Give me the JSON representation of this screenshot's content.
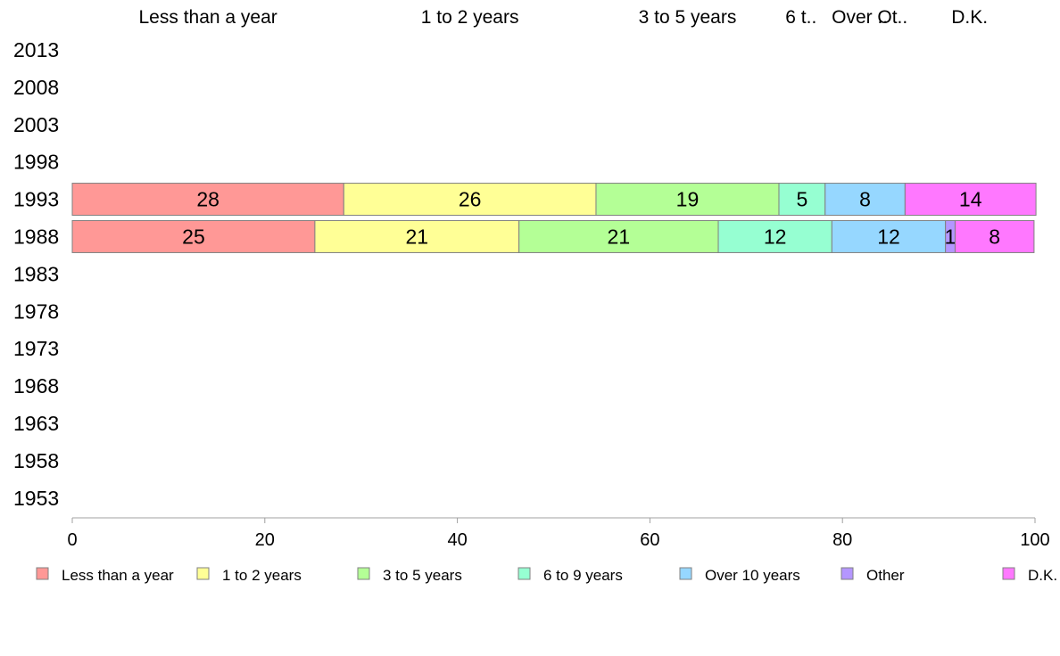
{
  "chart_data": {
    "type": "bar",
    "orientation": "horizontal",
    "stacked": true,
    "categories": [
      "2013",
      "2008",
      "2003",
      "1998",
      "1993",
      "1988",
      "1983",
      "1978",
      "1973",
      "1968",
      "1963",
      "1958",
      "1953"
    ],
    "series": [
      {
        "name": "Less than a year",
        "color": "#ff9896",
        "values": [
          null,
          null,
          null,
          null,
          28.2,
          25.2,
          null,
          null,
          null,
          null,
          null,
          null,
          null
        ],
        "labels": [
          "",
          "",
          "",
          "",
          "28",
          "25",
          "",
          "",
          "",
          "",
          "",
          "",
          ""
        ]
      },
      {
        "name": "1 to 2 years",
        "color": "#ffff96",
        "values": [
          null,
          null,
          null,
          null,
          26.2,
          21.2,
          null,
          null,
          null,
          null,
          null,
          null,
          null
        ],
        "labels": [
          "",
          "",
          "",
          "",
          "26",
          "21",
          "",
          "",
          "",
          "",
          "",
          "",
          ""
        ]
      },
      {
        "name": "3 to 5 years",
        "color": "#b4ff96",
        "values": [
          null,
          null,
          null,
          null,
          19.0,
          20.7,
          null,
          null,
          null,
          null,
          null,
          null,
          null
        ],
        "labels": [
          "",
          "",
          "",
          "",
          "19",
          "21",
          "",
          "",
          "",
          "",
          "",
          "",
          ""
        ]
      },
      {
        "name": "6 to 9 years",
        "color": "#96ffd2",
        "values": [
          null,
          null,
          null,
          null,
          4.8,
          11.8,
          null,
          null,
          null,
          null,
          null,
          null,
          null
        ],
        "labels": [
          "",
          "",
          "",
          "",
          "5",
          "12",
          "",
          "",
          "",
          "",
          "",
          "",
          ""
        ]
      },
      {
        "name": "Over 10 years",
        "color": "#96d7ff",
        "values": [
          null,
          null,
          null,
          null,
          8.3,
          11.8,
          null,
          null,
          null,
          null,
          null,
          null,
          null
        ],
        "labels": [
          "",
          "",
          "",
          "",
          "8",
          "12",
          "",
          "",
          "",
          "",
          "",
          "",
          ""
        ]
      },
      {
        "name": "Other",
        "color": "#b496ff",
        "values": [
          null,
          null,
          null,
          null,
          0,
          1.0,
          null,
          null,
          null,
          null,
          null,
          null,
          null
        ],
        "labels": [
          "",
          "",
          "",
          "",
          "",
          "1",
          "",
          "",
          "",
          "",
          "",
          "",
          ""
        ]
      },
      {
        "name": "D.K.",
        "color": "#ff78ff",
        "values": [
          null,
          null,
          null,
          null,
          13.6,
          8.2,
          null,
          null,
          null,
          null,
          null,
          null,
          null
        ],
        "labels": [
          "",
          "",
          "",
          "",
          "14",
          "8",
          "",
          "",
          "",
          "",
          "",
          "",
          ""
        ]
      }
    ],
    "top_labels": [
      "Less than a year",
      "1 to 2 years",
      "3 to 5 years",
      "6 t..",
      "Over ..",
      "Ot..",
      "D.K."
    ],
    "top_label_centers": [
      14.1,
      41.3,
      63.9,
      75.7,
      81.8,
      85.2,
      93.2
    ],
    "xlim": [
      0,
      100
    ],
    "xticks": [
      0,
      20,
      40,
      60,
      80,
      100
    ],
    "legend": "bottom",
    "grid": false
  }
}
